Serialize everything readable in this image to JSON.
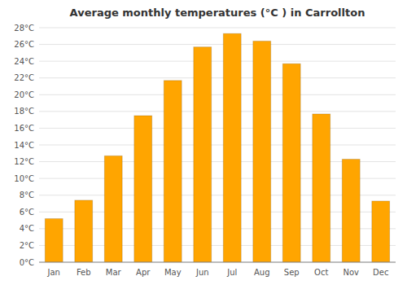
{
  "chart_data": {
    "type": "bar",
    "title": "Average monthly temperatures (°C ) in Carrollton",
    "categories": [
      "Jan",
      "Feb",
      "Mar",
      "Apr",
      "May",
      "Jun",
      "Jul",
      "Aug",
      "Sep",
      "Oct",
      "Nov",
      "Dec"
    ],
    "values": [
      5.2,
      7.4,
      12.7,
      17.5,
      21.7,
      25.7,
      27.3,
      26.4,
      23.7,
      17.7,
      12.3,
      7.3
    ],
    "color": "#FFA500",
    "ylim": [
      0,
      28
    ],
    "yticks": [
      {
        "value": 0,
        "label": "0°C"
      },
      {
        "value": 2,
        "label": "2°C"
      },
      {
        "value": 4,
        "label": "4°C"
      },
      {
        "value": 6,
        "label": "6°C"
      },
      {
        "value": 8,
        "label": "8°C"
      },
      {
        "value": 10,
        "label": "10°C"
      },
      {
        "value": 12,
        "label": "12°C"
      },
      {
        "value": 14,
        "label": "14°C"
      },
      {
        "value": 16,
        "label": "16°C"
      },
      {
        "value": 18,
        "label": "18°C"
      },
      {
        "value": 20,
        "label": "20°C"
      },
      {
        "value": 22,
        "label": "22°C"
      },
      {
        "value": 24,
        "label": "24°C"
      },
      {
        "value": 26,
        "label": "26°C"
      },
      {
        "value": 28,
        "label": "28°C"
      }
    ],
    "grid": true
  }
}
